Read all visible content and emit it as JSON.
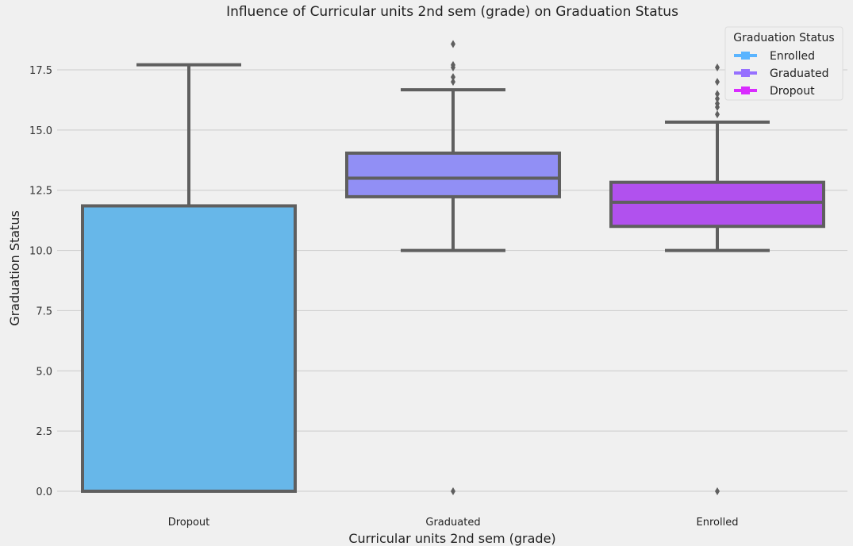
{
  "chart_data": {
    "type": "box",
    "title": "Influence of Curricular units 2nd sem (grade) on Graduation Status",
    "xlabel": "Curricular units 2nd sem (grade)",
    "ylabel": "Graduation Status",
    "ylim": [
      -0.6,
      19.3
    ],
    "yticks": [
      "0.0",
      "2.5",
      "5.0",
      "7.5",
      "10.0",
      "12.5",
      "15.0",
      "17.5"
    ],
    "ytick_values": [
      0,
      2.5,
      5,
      7.5,
      10,
      12.5,
      15,
      17.5
    ],
    "grid": true,
    "categories": [
      "Dropout",
      "Graduated",
      "Enrolled"
    ],
    "boxes": [
      {
        "category": "Dropout",
        "whisker_low": 0,
        "q1": 0,
        "median": 0,
        "q3": 11.85,
        "whisker_high": 17.71,
        "outliers": [],
        "color": "#67b7e9"
      },
      {
        "category": "Graduated",
        "whisker_low": 10.0,
        "q1": 12.23,
        "median": 13.0,
        "q3": 14.04,
        "whisker_high": 16.67,
        "outliers": [
          0,
          17.0,
          17.2,
          17.6,
          17.7,
          18.57
        ],
        "color": "#918ff5"
      },
      {
        "category": "Enrolled",
        "whisker_low": 10.0,
        "q1": 11.0,
        "median": 12.0,
        "q3": 12.83,
        "whisker_high": 15.33,
        "outliers": [
          0,
          15.65,
          15.95,
          16.1,
          16.3,
          16.5,
          17.0,
          17.6
        ],
        "color": "#b151ee"
      }
    ],
    "legend": {
      "title": "Graduation Status",
      "placement": "top-right",
      "entries": [
        {
          "label": "Enrolled",
          "color": "#5ab4ff"
        },
        {
          "label": "Graduated",
          "color": "#9670ff"
        },
        {
          "label": "Dropout",
          "color": "#d92cff"
        }
      ]
    }
  }
}
